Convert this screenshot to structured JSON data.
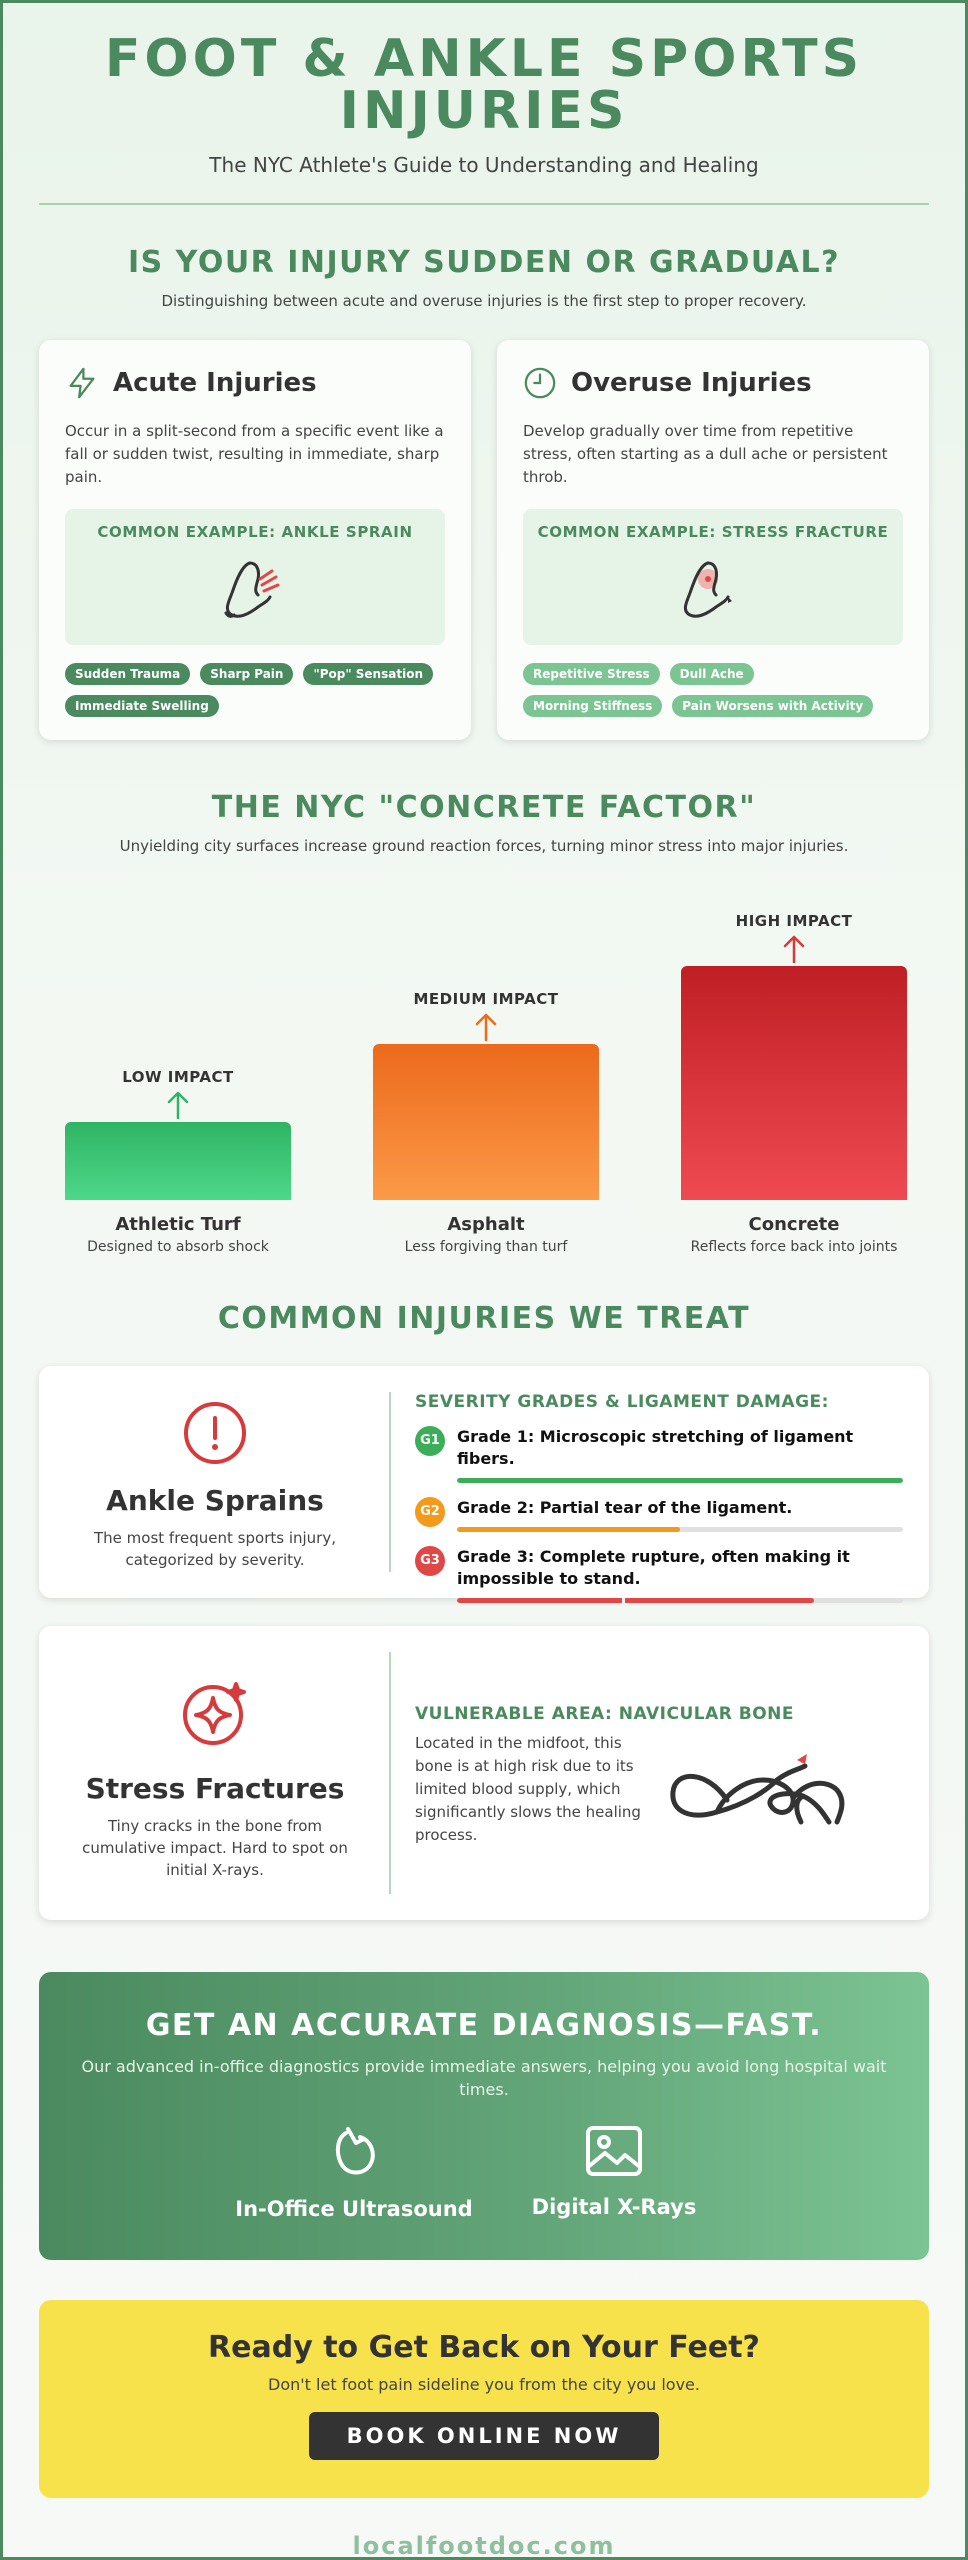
{
  "header": {
    "title": "FOOT & ANKLE SPORTS INJURIES",
    "subtitle": "The NYC Athlete's Guide to Understanding and Healing"
  },
  "sudden_section": {
    "title": "IS YOUR INJURY SUDDEN OR GRADUAL?",
    "subtitle": "Distinguishing between acute and overuse injuries is the first step to proper recovery.",
    "acute": {
      "icon": "lightning-icon",
      "title": "Acute Injuries",
      "description": "Occur in a split-second from a specific event like a fall or sudden twist, resulting in immediate, sharp pain.",
      "example": "COMMON EXAMPLE: ANKLE SPRAIN",
      "tags": [
        "Sudden Trauma",
        "Sharp Pain",
        "\"Pop\" Sensation",
        "Immediate Swelling"
      ]
    },
    "overuse": {
      "icon": "clock-icon",
      "title": "Overuse Injuries",
      "description": "Develop gradually over time from repetitive stress, often starting as a dull ache or persistent throb.",
      "example": "COMMON EXAMPLE: STRESS FRACTURE",
      "tags": [
        "Repetitive Stress",
        "Dull Ache",
        "Morning Stiffness",
        "Pain Worsens with Activity"
      ]
    }
  },
  "concrete_section": {
    "title": "THE NYC \"CONCRETE FACTOR\"",
    "subtitle": "Unyielding city surfaces increase ground reaction forces, turning minor stress into major injuries.",
    "surfaces": [
      {
        "impact": "LOW IMPACT",
        "name": "Athletic Turf",
        "desc": "Designed to absorb shock",
        "level": 1,
        "color_top": "#2fb463",
        "color_bottom": "#4ed88a",
        "arrow_color": "#2fb463"
      },
      {
        "impact": "MEDIUM IMPACT",
        "name": "Asphalt",
        "desc": "Less forgiving than turf",
        "level": 2,
        "color_top": "#ec6a1c",
        "color_bottom": "#fb9a48",
        "arrow_color": "#ec6a1c"
      },
      {
        "impact": "HIGH IMPACT",
        "name": "Concrete",
        "desc": "Reflects force back into joints",
        "level": 3,
        "color_top": "#bf1f24",
        "color_bottom": "#ef4a52",
        "arrow_color": "#d63a3a"
      }
    ]
  },
  "injuries_section": {
    "title": "COMMON INJURIES WE TREAT",
    "sprain": {
      "icon": "alert-circle-icon",
      "name": "Ankle Sprains",
      "subtitle": "The most frequent sports injury, categorized by severity.",
      "grades_title": "SEVERITY GRADES & LIGAMENT DAMAGE:",
      "grades": [
        {
          "badge": "G1",
          "text": "Grade 1: Microscopic stretching of ligament fibers.",
          "color": "#3cae5a",
          "fill": 1.0
        },
        {
          "badge": "G2",
          "text": "Grade 2: Partial tear of the ligament.",
          "color": "#f39a1b",
          "fill": 0.5
        },
        {
          "badge": "G3",
          "text": "Grade 3: Complete rupture, often making it impossible to stand.",
          "color": "#e04848",
          "fill": 0.8
        }
      ]
    },
    "fracture": {
      "icon": "sparkle-break-icon",
      "name": "Stress Fractures",
      "subtitle": "Tiny cracks in the bone from cumulative impact. Hard to spot on initial X-rays.",
      "area_title": "VULNERABLE AREA: NAVICULAR BONE",
      "area_text": "Located in the midfoot, this bone is at high risk due to its limited blood supply, which significantly slows the healing process."
    }
  },
  "diagnosis": {
    "title": "GET AN ACCURATE DIAGNOSIS—FAST.",
    "subtitle": "Our advanced in-office diagnostics provide immediate answers, helping you avoid long hospital wait times.",
    "features": [
      {
        "icon": "ultrasound-probe-icon",
        "label": "In-Office Ultrasound"
      },
      {
        "icon": "image-icon",
        "label": "Digital X-Rays"
      }
    ]
  },
  "cta": {
    "title": "Ready to Get Back on Your Feet?",
    "subtitle": "Don't let foot pain sideline you from the city you love.",
    "button": "BOOK ONLINE NOW"
  },
  "footer": {
    "site": "localfootdoc.com"
  }
}
